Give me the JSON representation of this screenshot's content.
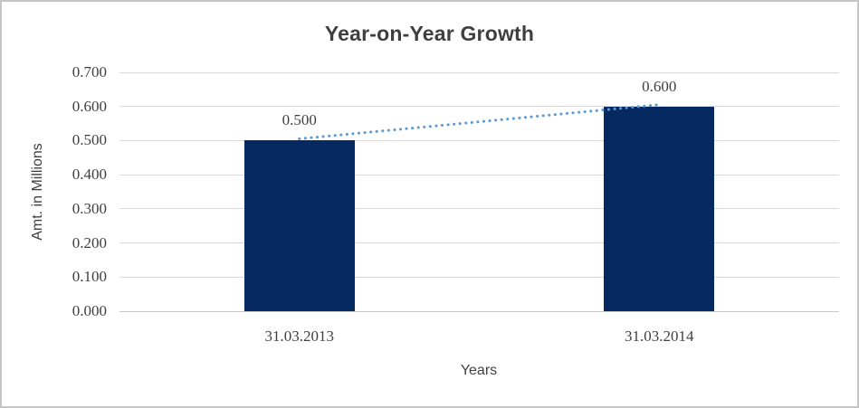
{
  "window": {
    "background": "#ffffff",
    "border_color": "#c6c6c6"
  },
  "chart_data": {
    "type": "bar",
    "title": "Year-on-Year Growth",
    "xlabel": "Years",
    "ylabel": "Amt. in Millions",
    "categories": [
      "31.03.2013",
      "31.03.2014"
    ],
    "values": [
      0.5,
      0.6
    ],
    "data_labels": [
      "0.500",
      "0.600"
    ],
    "ylim": [
      0,
      0.7
    ],
    "yticks": [
      "0.000",
      "0.100",
      "0.200",
      "0.300",
      "0.400",
      "0.500",
      "0.600",
      "0.700"
    ],
    "grid": true,
    "legend": "none",
    "bar_color": "#062961",
    "text_color": "#3f3f3f",
    "gridline_color": "#d9d9d9",
    "axis_line_color": "#c9c9c9",
    "trendline": {
      "type": "linear",
      "style": "dotted",
      "color": "#5b9bd5"
    }
  }
}
